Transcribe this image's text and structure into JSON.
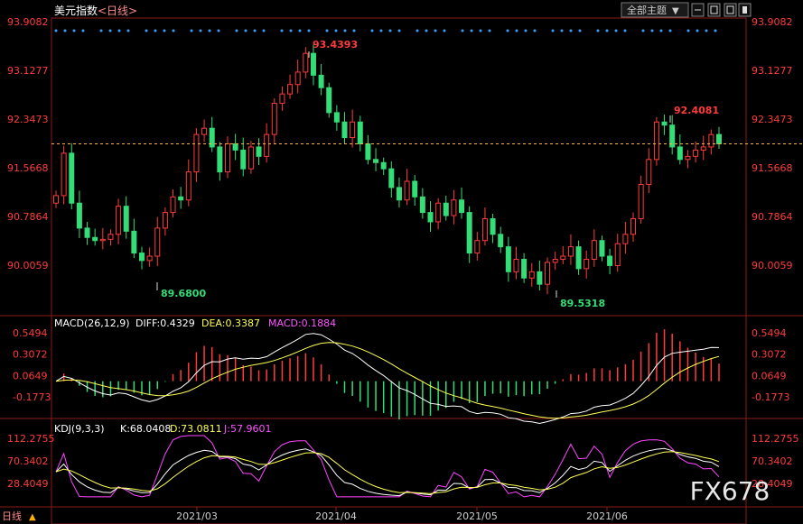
{
  "header": {
    "title": "美元指数",
    "period": "<日线>",
    "dropdown_label": "全部主题",
    "dropdown_arrow": "▼"
  },
  "main_panel": {
    "y_ticks": [
      "93.9082",
      "93.1277",
      "92.3473",
      "91.5668",
      "90.7864",
      "90.0059"
    ],
    "last_price": 91.95,
    "annotations": {
      "high_a": "93.4393",
      "low_a": "89.6800",
      "low_b": "89.5318",
      "high_b": "92.4081"
    }
  },
  "macd_panel": {
    "label": "MACD(26,12,9)",
    "diff": "DIFF:0.4329",
    "dea": "DEA:0.3387",
    "macd": "MACD:0.1884",
    "y_ticks": [
      "0.5494",
      "0.3072",
      "0.0649",
      "-0.1773"
    ]
  },
  "kdj_panel": {
    "label": "KDJ(9,3,3)",
    "k": "K:68.0408",
    "d": "D:73.0811",
    "j": "J:57.9601",
    "y_ticks": [
      "112.2755",
      "70.3402",
      "28.4049"
    ]
  },
  "x_axis": {
    "labels": [
      "2021/03",
      "2021/04",
      "2021/05",
      "2021/06"
    ],
    "period_tab": "日线",
    "period_arrow": "▲"
  },
  "watermark": "FX678",
  "colors": {
    "up": "#ff3b3b",
    "down": "#33dd77",
    "diff": "#ffffff",
    "dea": "#ffff55",
    "j": "#ff44ff",
    "accent_red": "#ff3b3b"
  },
  "chart_data": {
    "type": "candlestick",
    "series": [
      {
        "name": "美元指数",
        "ohlc_close": [
          91.12,
          91.8,
          91.0,
          90.6,
          90.45,
          90.4,
          90.42,
          90.5,
          90.95,
          90.55,
          90.2,
          90.08,
          90.15,
          90.6,
          90.85,
          91.1,
          91.05,
          91.5,
          92.1,
          92.2,
          91.9,
          91.5,
          91.95,
          91.85,
          91.55,
          91.9,
          91.75,
          92.1,
          92.6,
          92.75,
          92.9,
          93.1,
          93.4,
          93.05,
          92.85,
          92.45,
          92.3,
          92.05,
          92.3,
          91.95,
          91.7,
          91.65,
          91.55,
          91.25,
          91.05,
          91.35,
          91.1,
          90.85,
          90.7,
          91.0,
          90.8,
          91.05,
          90.85,
          90.2,
          90.4,
          90.75,
          90.5,
          90.3,
          89.9,
          90.1,
          89.8,
          89.9,
          89.7,
          90.05,
          90.1,
          90.15,
          90.3,
          89.95,
          90.1,
          90.4,
          90.15,
          90.0,
          90.35,
          90.5,
          90.75,
          91.3,
          91.7,
          92.3,
          92.25,
          91.9,
          91.7,
          91.75,
          91.85,
          91.9,
          92.1,
          91.95
        ]
      },
      {
        "name": "DIFF",
        "values_note": "line"
      },
      {
        "name": "DEA",
        "values_note": "line"
      },
      {
        "name": "K",
        "values_note": "line"
      },
      {
        "name": "D",
        "values_note": "line"
      },
      {
        "name": "J",
        "values_note": "line"
      }
    ]
  }
}
